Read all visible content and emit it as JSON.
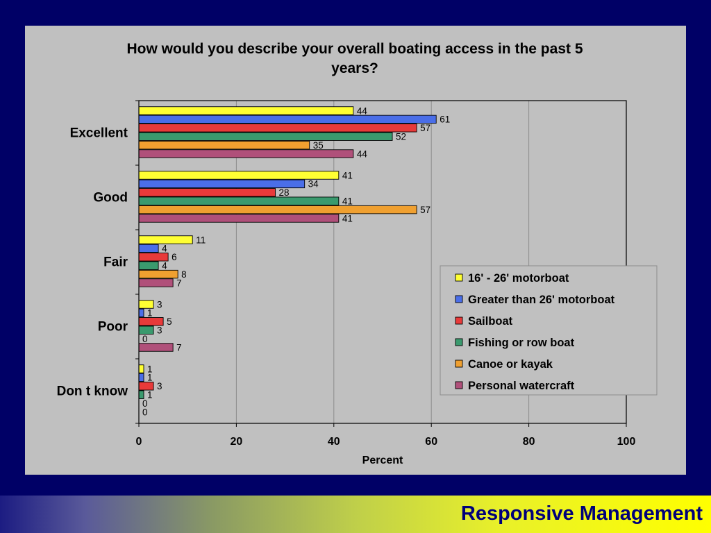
{
  "chart_data": {
    "type": "bar",
    "orientation": "horizontal",
    "title": "How would you describe your overall boating access in the past 5 years?",
    "xlabel": "Percent",
    "ylabel": "",
    "xlim": [
      0,
      100
    ],
    "x_ticks": [
      "0",
      "20",
      "40",
      "60",
      "80",
      "100"
    ],
    "categories": [
      "Excellent",
      "Good",
      "Fair",
      "Poor",
      "Don t know"
    ],
    "series": [
      {
        "name": "16' - 26' motorboat",
        "color": "#ffff33",
        "values": [
          44,
          41,
          11,
          3,
          1
        ]
      },
      {
        "name": "Greater than 26' motorboat",
        "color": "#4a6ee8",
        "values": [
          61,
          34,
          4,
          1,
          1
        ]
      },
      {
        "name": "Sailboat",
        "color": "#e83a3a",
        "values": [
          57,
          28,
          6,
          5,
          3
        ]
      },
      {
        "name": "Fishing or row boat",
        "color": "#3a9a6e",
        "values": [
          52,
          41,
          4,
          3,
          1
        ]
      },
      {
        "name": "Canoe or kayak",
        "color": "#f0a030",
        "values": [
          35,
          57,
          8,
          0,
          0
        ]
      },
      {
        "name": "Personal watercraft",
        "color": "#b0507a",
        "values": [
          44,
          41,
          7,
          7,
          0
        ]
      }
    ],
    "grid": true,
    "legend_position": "right"
  },
  "footer": {
    "brand": "Responsive Management"
  }
}
